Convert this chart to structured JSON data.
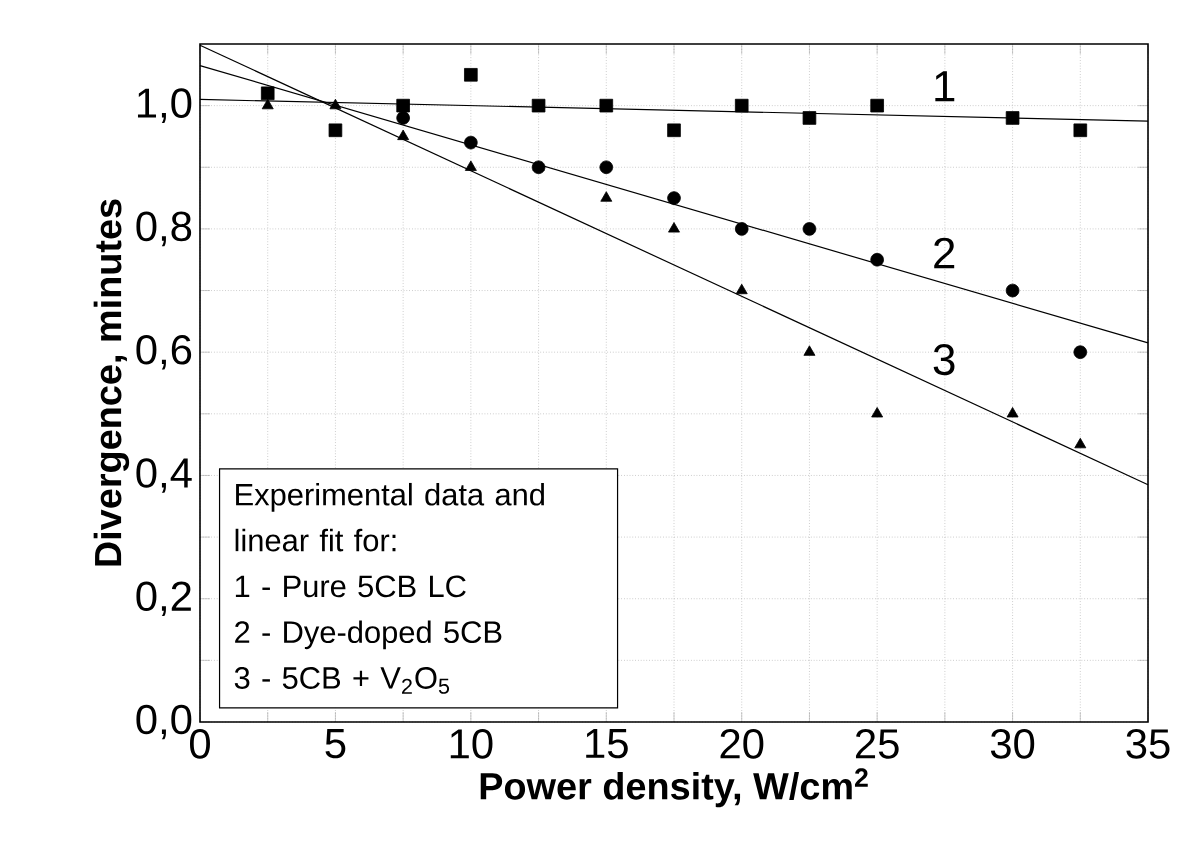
{
  "chart_data": {
    "type": "scatter",
    "xlabel": "Power density, W/cm$^{2}$",
    "ylabel": "Divergence, minutes",
    "xlim": [
      0,
      35
    ],
    "ylim": [
      0,
      1.1
    ],
    "xticks": [
      0,
      {
        "value": 2.5,
        "label": null
      },
      5,
      {
        "value": 7.5,
        "label": null
      },
      10,
      {
        "value": 12.5,
        "label": null
      },
      15,
      {
        "value": 17.5,
        "label": null
      },
      20,
      {
        "value": 22.5,
        "label": null
      },
      25,
      {
        "value": 27.5,
        "label": null
      },
      30,
      {
        "value": 32.5,
        "label": null
      },
      35
    ],
    "yticks": [
      {
        "value": 0,
        "label": "0,0"
      },
      {
        "value": 0.1,
        "label": null
      },
      {
        "value": 0.2,
        "label": "0,2"
      },
      {
        "value": 0.3,
        "label": null
      },
      {
        "value": 0.4,
        "label": "0,4"
      },
      {
        "value": 0.5,
        "label": null
      },
      {
        "value": 0.6,
        "label": "0,6"
      },
      {
        "value": 0.7,
        "label": null
      },
      {
        "value": 0.8,
        "label": "0,8"
      },
      {
        "value": 0.9,
        "label": null
      },
      {
        "value": 1.0,
        "label": "1,0"
      }
    ],
    "grid": true,
    "series": [
      {
        "marker": "square",
        "color": "#000000",
        "x": [
          2.5,
          5,
          7.5,
          10,
          12.5,
          15,
          17.5,
          20,
          22.5,
          25,
          30,
          32.5
        ],
        "values": [
          1.02,
          0.96,
          1.0,
          1.05,
          1.0,
          1.0,
          0.96,
          1.0,
          0.98,
          1.0,
          0.98,
          0.96
        ]
      },
      {
        "marker": "circle",
        "color": "#000000",
        "x": [
          7.5,
          10,
          12.5,
          15,
          17.5,
          20,
          22.5,
          25,
          30,
          32.5
        ],
        "values": [
          0.98,
          0.94,
          0.9,
          0.9,
          0.85,
          0.8,
          0.8,
          0.75,
          0.7,
          0.6
        ]
      },
      {
        "marker": "triangle",
        "color": "#000000",
        "x": [
          2.5,
          5,
          7.5,
          10,
          12.5,
          15,
          17.5,
          20,
          22.5,
          25,
          30,
          32.5
        ],
        "values": [
          1.0,
          1.0,
          0.95,
          0.9,
          0.9,
          0.85,
          0.8,
          0.7,
          0.6,
          0.5,
          0.5,
          0.45
        ]
      },
      {
        "type": "line",
        "marker": "none",
        "color": "#000000",
        "x": [
          0,
          35
        ],
        "values": [
          1.01,
          0.975
        ]
      },
      {
        "type": "line",
        "marker": "none",
        "color": "#000000",
        "x": [
          0,
          35
        ],
        "values": [
          1.065,
          0.615
        ]
      },
      {
        "type": "line",
        "marker": "none",
        "color": "#000000",
        "x": [
          0,
          35
        ],
        "values": [
          1.098,
          0.385
        ]
      }
    ],
    "annotations": [
      "1",
      "2",
      "3",
      "Experimental data and linear fit for:",
      "1 - Pure 5CB LC",
      "2 - Dye-doped 5CB",
      "3 - 5CB + V$_{2}$O$_{5}$"
    ]
  }
}
